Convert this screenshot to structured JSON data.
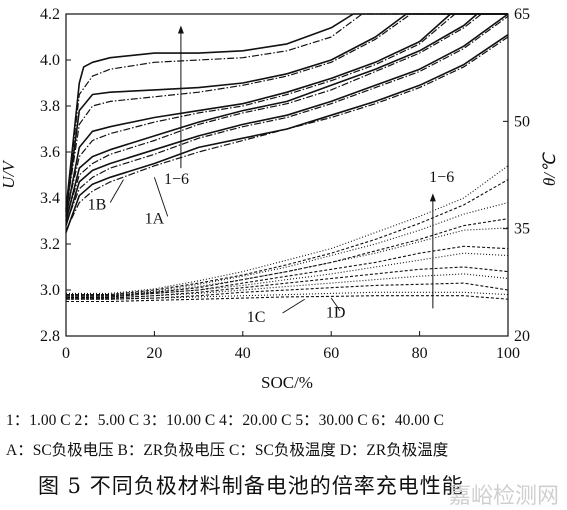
{
  "chart_data": {
    "type": "line",
    "xlabel": "SOC/%",
    "ylabel_left": "U/V",
    "ylabel_right": "θ/℃",
    "xlim": [
      0,
      100
    ],
    "ylim_left": [
      2.8,
      4.2
    ],
    "ylim_right": [
      20,
      65
    ],
    "x_ticks": [
      "0",
      "20",
      "40",
      "60",
      "80",
      "100"
    ],
    "y_left_ticks": [
      "2.8",
      "3.0",
      "3.2",
      "3.4",
      "3.6",
      "3.8",
      "4.0",
      "4.2"
    ],
    "y_right_ticks": [
      "20",
      "35",
      "50",
      "65"
    ],
    "grid": false,
    "annotations": [
      {
        "text": "1−6",
        "x": 25,
        "y": 3.46
      },
      {
        "text": "1B",
        "x": 7,
        "y": 3.35
      },
      {
        "text": "1A",
        "x": 20,
        "y": 3.29
      },
      {
        "text": "1−6",
        "x": 85,
        "y": 3.47
      },
      {
        "text": "1C",
        "x": 43,
        "y": 2.86
      },
      {
        "text": "1D",
        "x": 61,
        "y": 2.88
      }
    ],
    "series": [
      {
        "id": "A1",
        "group": "A",
        "rate": 1,
        "x": [
          0,
          3,
          6,
          10,
          20,
          30,
          40,
          50,
          60,
          70,
          80,
          90,
          100
        ],
        "y": [
          3.25,
          3.41,
          3.46,
          3.49,
          3.55,
          3.62,
          3.66,
          3.7,
          3.76,
          3.82,
          3.89,
          3.98,
          4.11
        ]
      },
      {
        "id": "A2",
        "group": "A",
        "rate": 2,
        "x": [
          0,
          3,
          6,
          10,
          20,
          30,
          40,
          50,
          60,
          70,
          80,
          90,
          100
        ],
        "y": [
          3.28,
          3.47,
          3.52,
          3.55,
          3.61,
          3.67,
          3.72,
          3.76,
          3.82,
          3.89,
          3.96,
          4.06,
          4.2
        ]
      },
      {
        "id": "A3",
        "group": "A",
        "rate": 3,
        "x": [
          0,
          3,
          6,
          10,
          20,
          30,
          40,
          50,
          60,
          70,
          80,
          90,
          93,
          100
        ],
        "y": [
          3.3,
          3.53,
          3.58,
          3.61,
          3.67,
          3.73,
          3.78,
          3.82,
          3.89,
          3.96,
          4.04,
          4.15,
          4.2,
          4.2
        ]
      },
      {
        "id": "A4",
        "group": "A",
        "rate": 4,
        "x": [
          0,
          3,
          6,
          10,
          20,
          30,
          40,
          50,
          60,
          70,
          80,
          87,
          100
        ],
        "y": [
          3.32,
          3.62,
          3.69,
          3.71,
          3.75,
          3.78,
          3.81,
          3.86,
          3.92,
          3.99,
          4.08,
          4.2,
          4.2
        ]
      },
      {
        "id": "A5",
        "group": "A",
        "rate": 5,
        "x": [
          0,
          3,
          6,
          10,
          20,
          30,
          40,
          50,
          60,
          70,
          77,
          100
        ],
        "y": [
          3.34,
          3.78,
          3.85,
          3.86,
          3.87,
          3.88,
          3.9,
          3.94,
          4.0,
          4.1,
          4.2,
          4.2
        ]
      },
      {
        "id": "A6",
        "group": "A",
        "rate": 6,
        "x": [
          0,
          3,
          4,
          6,
          10,
          20,
          30,
          40,
          50,
          60,
          65,
          100
        ],
        "y": [
          3.35,
          3.9,
          3.97,
          3.99,
          4.01,
          4.03,
          4.03,
          4.04,
          4.07,
          4.14,
          4.2,
          4.2
        ]
      },
      {
        "id": "B1",
        "group": "B",
        "rate": 1,
        "x": [
          0,
          3,
          6,
          10,
          20,
          30,
          40,
          50,
          60,
          70,
          80,
          90,
          100
        ],
        "y": [
          3.26,
          3.38,
          3.43,
          3.47,
          3.54,
          3.6,
          3.65,
          3.7,
          3.75,
          3.81,
          3.88,
          3.97,
          4.1
        ]
      },
      {
        "id": "B2",
        "group": "B",
        "rate": 2,
        "x": [
          0,
          3,
          6,
          10,
          20,
          30,
          40,
          50,
          60,
          70,
          80,
          90,
          100
        ],
        "y": [
          3.29,
          3.44,
          3.49,
          3.53,
          3.59,
          3.66,
          3.71,
          3.75,
          3.81,
          3.88,
          3.95,
          4.05,
          4.19
        ]
      },
      {
        "id": "B3",
        "group": "B",
        "rate": 3,
        "x": [
          0,
          3,
          6,
          10,
          20,
          30,
          40,
          50,
          60,
          70,
          80,
          90,
          94,
          100
        ],
        "y": [
          3.31,
          3.5,
          3.55,
          3.59,
          3.65,
          3.72,
          3.77,
          3.81,
          3.87,
          3.95,
          4.03,
          4.14,
          4.2,
          4.2
        ]
      },
      {
        "id": "B4",
        "group": "B",
        "rate": 4,
        "x": [
          0,
          3,
          6,
          10,
          20,
          30,
          40,
          50,
          60,
          70,
          80,
          88,
          100
        ],
        "y": [
          3.33,
          3.58,
          3.65,
          3.68,
          3.73,
          3.77,
          3.8,
          3.85,
          3.91,
          3.98,
          4.07,
          4.2,
          4.2
        ]
      },
      {
        "id": "B5",
        "group": "B",
        "rate": 5,
        "x": [
          0,
          3,
          6,
          10,
          20,
          30,
          40,
          50,
          60,
          70,
          78,
          100
        ],
        "y": [
          3.34,
          3.72,
          3.8,
          3.82,
          3.84,
          3.86,
          3.89,
          3.93,
          3.99,
          4.09,
          4.2,
          4.2
        ]
      },
      {
        "id": "B6",
        "group": "B",
        "rate": 6,
        "x": [
          0,
          3,
          6,
          10,
          20,
          30,
          40,
          50,
          60,
          67,
          100
        ],
        "y": [
          3.35,
          3.85,
          3.93,
          3.96,
          3.99,
          4.0,
          4.01,
          4.04,
          4.1,
          4.2,
          4.2
        ]
      },
      {
        "id": "C1",
        "group": "C",
        "rate": 1,
        "x": [
          0,
          10,
          20,
          30,
          40,
          50,
          60,
          70,
          80,
          90,
          100
        ],
        "y": [
          2.95,
          2.95,
          2.955,
          2.96,
          2.965,
          2.97,
          2.972,
          2.975,
          2.975,
          2.975,
          2.96
        ]
      },
      {
        "id": "C2",
        "group": "C",
        "rate": 2,
        "x": [
          0,
          10,
          20,
          30,
          40,
          50,
          60,
          70,
          80,
          90,
          100
        ],
        "y": [
          2.96,
          2.96,
          2.965,
          2.975,
          2.99,
          3.0,
          3.01,
          3.02,
          3.025,
          3.03,
          3.0
        ]
      },
      {
        "id": "C3",
        "group": "C",
        "rate": 3,
        "x": [
          0,
          10,
          20,
          30,
          40,
          50,
          60,
          70,
          80,
          90,
          100
        ],
        "y": [
          2.965,
          2.965,
          2.975,
          2.99,
          3.01,
          3.03,
          3.05,
          3.07,
          3.09,
          3.1,
          3.08
        ]
      },
      {
        "id": "C4",
        "group": "C",
        "rate": 4,
        "x": [
          0,
          10,
          20,
          30,
          40,
          50,
          60,
          70,
          80,
          90,
          100
        ],
        "y": [
          2.97,
          2.97,
          2.985,
          3.0,
          3.03,
          3.06,
          3.09,
          3.12,
          3.16,
          3.19,
          3.18
        ]
      },
      {
        "id": "C5",
        "group": "C",
        "rate": 5,
        "x": [
          0,
          10,
          20,
          30,
          40,
          50,
          60,
          70,
          80,
          90,
          100
        ],
        "y": [
          2.975,
          2.975,
          2.99,
          3.01,
          3.045,
          3.08,
          3.12,
          3.17,
          3.22,
          3.28,
          3.31
        ]
      },
      {
        "id": "C6",
        "group": "C",
        "rate": 6,
        "x": [
          0,
          10,
          20,
          30,
          40,
          50,
          60,
          70,
          80,
          90,
          100
        ],
        "y": [
          2.98,
          2.98,
          3.0,
          3.03,
          3.065,
          3.11,
          3.16,
          3.22,
          3.29,
          3.37,
          3.48
        ]
      },
      {
        "id": "D1",
        "group": "D",
        "rate": 1,
        "x": [
          0,
          10,
          20,
          30,
          40,
          50,
          60,
          70,
          80,
          90,
          100
        ],
        "y": [
          2.96,
          2.96,
          2.965,
          2.97,
          2.975,
          2.98,
          2.985,
          2.99,
          2.99,
          2.99,
          2.98
        ]
      },
      {
        "id": "D2",
        "group": "D",
        "rate": 2,
        "x": [
          0,
          10,
          20,
          30,
          40,
          50,
          60,
          70,
          80,
          90,
          100
        ],
        "y": [
          2.965,
          2.965,
          2.975,
          2.985,
          3.0,
          3.015,
          3.03,
          3.045,
          3.06,
          3.07,
          3.05
        ]
      },
      {
        "id": "D3",
        "group": "D",
        "rate": 3,
        "x": [
          0,
          10,
          20,
          30,
          40,
          50,
          60,
          70,
          80,
          90,
          100
        ],
        "y": [
          2.97,
          2.97,
          2.985,
          3.0,
          3.02,
          3.045,
          3.07,
          3.1,
          3.13,
          3.16,
          3.15
        ]
      },
      {
        "id": "D4",
        "group": "D",
        "rate": 4,
        "x": [
          0,
          10,
          20,
          30,
          40,
          50,
          60,
          70,
          80,
          90,
          100
        ],
        "y": [
          2.975,
          2.975,
          2.99,
          3.015,
          3.045,
          3.08,
          3.12,
          3.16,
          3.21,
          3.26,
          3.27
        ]
      },
      {
        "id": "D5",
        "group": "D",
        "rate": 5,
        "x": [
          0,
          10,
          20,
          30,
          40,
          50,
          60,
          70,
          80,
          90,
          100
        ],
        "y": [
          2.98,
          2.98,
          2.995,
          3.025,
          3.06,
          3.1,
          3.15,
          3.2,
          3.26,
          3.33,
          3.38
        ]
      },
      {
        "id": "D6",
        "group": "D",
        "rate": 6,
        "x": [
          0,
          10,
          20,
          30,
          40,
          50,
          60,
          70,
          80,
          90,
          100
        ],
        "y": [
          2.985,
          2.985,
          3.005,
          3.04,
          3.08,
          3.13,
          3.18,
          3.25,
          3.32,
          3.4,
          3.54
        ]
      }
    ]
  },
  "legend": {
    "line1": "1：1.00 C  2：5.00 C  3：10.00 C  4：20.00 C  5：30.00 C  6：40.00 C",
    "line2": "A：SC负极电压  B：ZR负极电压  C：SC负极温度  D：ZR负极温度"
  },
  "caption": "图 5   不同负极材料制备电池的倍率充电性能",
  "watermark": "嘉峪检测网"
}
